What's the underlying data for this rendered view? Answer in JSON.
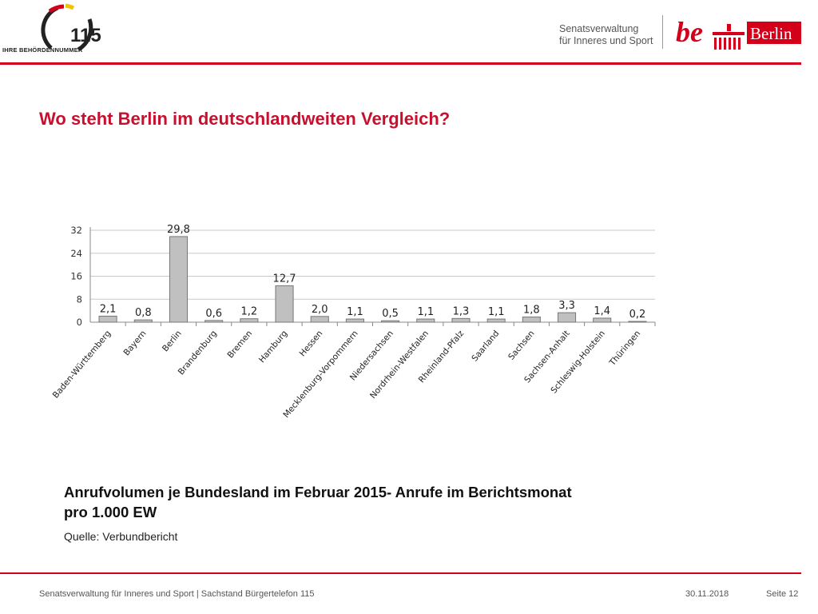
{
  "header": {
    "logo_number": "115",
    "logo_caption": "IHRE BEHÖRDENNUMMER",
    "department_line1": "Senatsverwaltung",
    "department_line2": "für Inneres und Sport",
    "be_text": "be",
    "berlin_text": "Berlin",
    "accent_color": "#d4001a",
    "header_rule_color": "#d4001a"
  },
  "title": "Wo steht Berlin im deutschlandweiten Vergleich?",
  "chart_data": {
    "type": "bar",
    "categories": [
      "Baden-Württemberg",
      "Bayern",
      "Berlin",
      "Brandenburg",
      "Bremen",
      "Hamburg",
      "Hessen",
      "Mecklenburg-Vorpommern",
      "Niedersachsen",
      "Nordrhein-Westfalen",
      "Rheinland-Pfalz",
      "Saarland",
      "Sachsen",
      "Sachsen-Anhalt",
      "Schleswig-Holstein",
      "Thüringen"
    ],
    "values": [
      2.1,
      0.8,
      29.8,
      0.6,
      1.2,
      12.7,
      2.0,
      1.1,
      0.5,
      1.1,
      1.3,
      1.1,
      1.8,
      3.3,
      1.4,
      0.2
    ],
    "value_labels": [
      "2,1",
      "0,8",
      "29,8",
      "0,6",
      "1,2",
      "12,7",
      "2,0",
      "1,1",
      "0,5",
      "1,1",
      "1,3",
      "1,1",
      "1,8",
      "3,3",
      "1,4",
      "0,2"
    ],
    "yticks": [
      0,
      8,
      16,
      24,
      32
    ],
    "ylim": [
      0,
      32
    ],
    "grid": true,
    "bar_color": "#c0c0c0",
    "bar_edge_color": "#777777"
  },
  "caption": {
    "line1": "Anrufvolumen je Bundesland  im Februar 2015- Anrufe im Berichtsmonat",
    "line2": "pro 1.000 EW",
    "source": "Quelle: Verbundbericht"
  },
  "footer": {
    "left": "Senatsverwaltung für Inneres und Sport | Sachstand Bürgertelefon 115",
    "date": "30.11.2018",
    "page": "Seite 12",
    "rule_color": "#d4001a"
  }
}
